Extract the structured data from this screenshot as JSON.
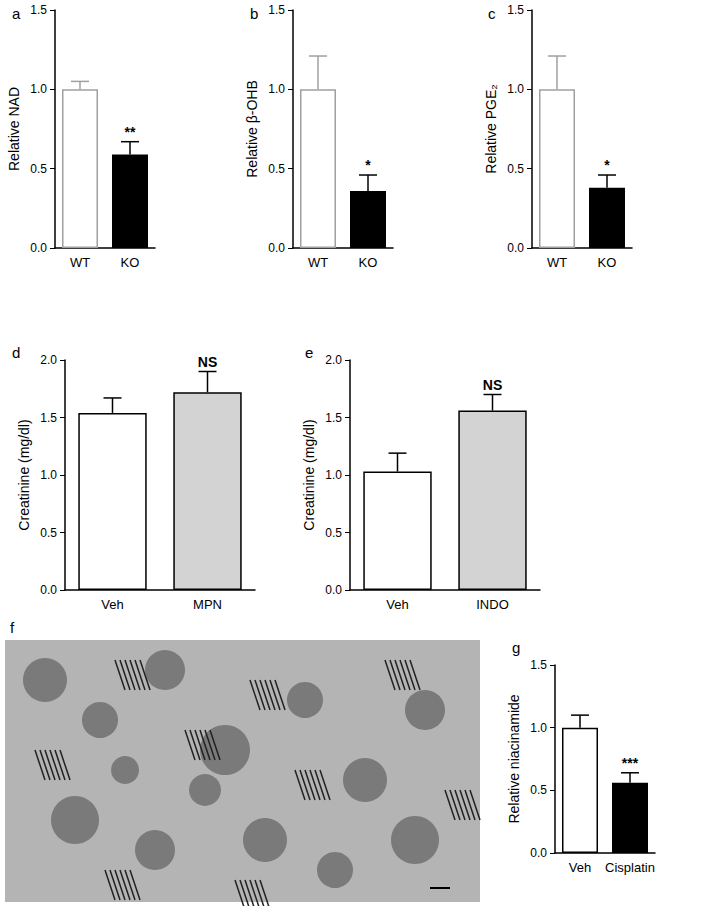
{
  "chart_data": [
    {
      "type": "bar",
      "title": "a",
      "ylabel": "Relative NAD",
      "categories": [
        "WT",
        "KO"
      ],
      "values": [
        1.0,
        0.59
      ],
      "errors": [
        0.05,
        0.08
      ],
      "annotations": [
        null,
        "**"
      ],
      "colors": [
        "#ffffff",
        "#000000"
      ],
      "ylim": [
        0,
        1.5
      ],
      "yticks": [
        {
          "value": 0,
          "label": "0.0"
        },
        0.5,
        {
          "value": 1,
          "label": "1.0"
        },
        1.5
      ],
      "grid": false
    },
    {
      "type": "bar",
      "title": "b",
      "ylabel": "Relative β-OHB",
      "categories": [
        "WT",
        "KO"
      ],
      "values": [
        1.0,
        0.36
      ],
      "errors": [
        0.21,
        0.1
      ],
      "annotations": [
        null,
        "*"
      ],
      "colors": [
        "#ffffff",
        "#000000"
      ],
      "ylim": [
        0,
        1.5
      ],
      "yticks": [
        {
          "value": 0,
          "label": "0.0"
        },
        0.5,
        {
          "value": 1,
          "label": "1.0"
        },
        1.5
      ],
      "grid": false
    },
    {
      "type": "bar",
      "title": "c",
      "ylabel": "Relative PGE₂",
      "categories": [
        "WT",
        "KO"
      ],
      "values": [
        1.0,
        0.38
      ],
      "errors": [
        0.21,
        0.08
      ],
      "annotations": [
        null,
        "*"
      ],
      "colors": [
        "#ffffff",
        "#000000"
      ],
      "ylim": [
        0,
        1.5
      ],
      "yticks": [
        {
          "value": 0,
          "label": "0.0"
        },
        0.5,
        {
          "value": 1,
          "label": "1.0"
        },
        1.5
      ],
      "grid": false
    },
    {
      "type": "bar",
      "title": "d",
      "ylabel": "Creatinine (mg/dl)",
      "categories": [
        "Veh",
        "MPN"
      ],
      "values": [
        1.54,
        1.72
      ],
      "errors": [
        0.13,
        0.18
      ],
      "annotations": [
        null,
        "NS"
      ],
      "colors": [
        "#ffffff",
        "#d3d3d3"
      ],
      "ylim": [
        0,
        2
      ],
      "yticks": [
        {
          "value": 0,
          "label": "0.0"
        },
        0.5,
        {
          "value": 1,
          "label": "1.0"
        },
        1.5,
        {
          "value": 2,
          "label": "2.0"
        }
      ],
      "grid": false
    },
    {
      "type": "bar",
      "title": "e",
      "ylabel": "Creatinine (mg/dl)",
      "categories": [
        "Veh",
        "INDO"
      ],
      "values": [
        1.03,
        1.56
      ],
      "errors": [
        0.16,
        0.14
      ],
      "annotations": [
        null,
        "NS"
      ],
      "colors": [
        "#ffffff",
        "#d3d3d3"
      ],
      "ylim": [
        0,
        2
      ],
      "yticks": [
        {
          "value": 0,
          "label": "0.0"
        },
        0.5,
        {
          "value": 1,
          "label": "1.0"
        },
        1.5,
        {
          "value": 2,
          "label": "2.0"
        }
      ],
      "grid": false
    },
    {
      "type": "image",
      "title": "f"
    },
    {
      "type": "bar",
      "title": "g",
      "ylabel": "Relative niacinamide",
      "categories": [
        "Veh",
        "Cisplatin"
      ],
      "values": [
        1.0,
        0.56
      ],
      "errors": [
        0.1,
        0.08
      ],
      "annotations": [
        null,
        "***"
      ],
      "colors": [
        "#ffffff",
        "#000000"
      ],
      "ylim": [
        0,
        1.5
      ],
      "yticks": [
        {
          "value": 0,
          "label": "0.0"
        },
        0.5,
        {
          "value": 1,
          "label": "1.0"
        },
        1.5
      ],
      "grid": false
    }
  ]
}
